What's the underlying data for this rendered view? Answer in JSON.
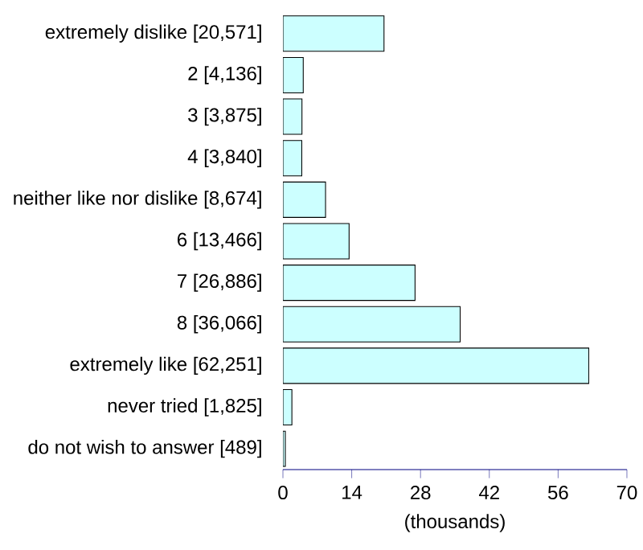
{
  "chart_data": {
    "type": "bar",
    "orientation": "horizontal",
    "xlabel": "(thousands)",
    "categories": [
      "extremely dislike [20,571]",
      "2 [4,136]",
      "3 [3,875]",
      "4 [3,840]",
      "neither like nor dislike [8,674]",
      "6 [13,466]",
      "7 [26,886]",
      "8 [36,066]",
      "extremely like [62,251]",
      "never tried [1,825]",
      "do not wish to answer [489]"
    ],
    "values": [
      20.571,
      4.136,
      3.875,
      3.84,
      8.674,
      13.466,
      26.886,
      36.066,
      62.251,
      1.825,
      0.489
    ],
    "color": "#ccffff",
    "xlim": [
      0,
      70
    ],
    "xticks": [
      0,
      14,
      28,
      42,
      56,
      70
    ]
  }
}
